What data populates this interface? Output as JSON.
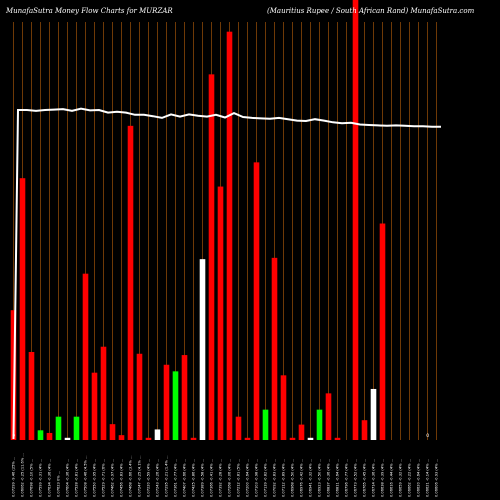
{
  "title_left": "MunafaSutra  Money  Flow  Charts for MURZAR",
  "title_right": "(Mauritius Rupee    / South African  Rand) MunafaSutra.com",
  "colors": {
    "background": "#000000",
    "grid": "#b8600a",
    "up": "#00ff00",
    "down": "#ff0000",
    "neutral": "#ffffff",
    "line": "#ffffff"
  },
  "chart_data": {
    "type": "bar",
    "ylim": [
      0,
      100
    ],
    "grid": "vertical",
    "zero_marks": [
      {
        "index": 0,
        "label": "0"
      },
      {
        "index": 46,
        "label": "0"
      }
    ],
    "categories": [
      "0.07299 -9.46 (25% ...",
      "0.06062 -0.25 (11.6% ...",
      "0.07698 -0.10 (5% ...",
      "0.07599 -0.31 (4% ...",
      "0.07634 -0.36 (4% ...",
      "0.07623 0% ...",
      "0.07604 -0.36 (4% ...",
      "0.07528 -0.81 (4% ...",
      "0.07508 -0.46 (4.5% ...",
      "0.07550 -0.95 (4% ...",
      "0.07529 -0.71 (6% ...",
      "0.07462 -0.97 (4% ...",
      "0.07456 -0.83 (4% ...",
      "0.07468 -0.66 (3.4% ...",
      "0.07247 -0.25 (4.1% ...",
      "0.07220 -0.59 (4% ...",
      "0.07243 -0.26 (4% ...",
      "0.07295 -0.21 (1.4% ...",
      "0.07361 -0.77 (4% ...",
      "0.07407 -0.66 (4% ...",
      "0.07425 -0.86 (4% ...",
      "0.07389 -0.58 (4% ...",
      "0.07366 -0.41 (4% ...",
      "0.07392 -0.28 (4% ...",
      "0.07268 -0.06 (4% ...",
      "0.07212 -0.81 (5% ...",
      "0.07200 -0.64 (4% ...",
      "0.07103 -0.98 (4% ...",
      "0.07139 -0.82 (4% ...",
      "0.07092 -0.83 (4% ...",
      "0.07112 -0.89 (4% ...",
      "0.06968 -0.50 (4% ...",
      "0.06976 -0.42 (4% ...",
      "0.06941 -0.32 (4% ...",
      "0.06923 -0.50 (4% ...",
      "0.06837 -0.36 (4% ...",
      "0.06811 -0.64 (4% ...",
      "0.06796 -0.77 (4% ...",
      "0.06773 -0.52 (4% ...",
      "0.06765 -0.45 (4% ...",
      "0.06714 -0.36 (4% ...",
      "0.06638 -0.39 (4% ...",
      "0.06616 -0.44 (4% ...",
      "0.06659 -0.32 (4% ...",
      "0.06662 -0.22 (4% ...",
      "0.06620 -0.64 (4% ...",
      "0.06621 -0.14 (4% ...",
      "0.06606 -0.93 (4% ..."
    ],
    "colors": [
      "down",
      "down",
      "down",
      "up",
      "down",
      "up",
      "neutral",
      "up",
      "down",
      "down",
      "down",
      "down",
      "down",
      "down",
      "down",
      "down",
      "neutral",
      "down",
      "up",
      "down",
      "down",
      "neutral",
      "down",
      "down",
      "down",
      "down",
      "down",
      "down",
      "up",
      "down",
      "down",
      "down",
      "down",
      "neutral",
      "up",
      "down",
      "down",
      "neutral",
      "down",
      "down",
      "neutral",
      "down",
      "down",
      "down",
      "down",
      "down",
      "up",
      "down"
    ],
    "values": [
      29.5,
      59.5,
      20.0,
      2.2,
      1.6,
      5.3,
      0.5,
      5.3,
      37.8,
      15.3,
      21.2,
      3.6,
      1.1,
      71.4,
      19.6,
      0.5,
      2.4,
      17.1,
      15.6,
      19.3,
      0.5,
      41.1,
      83.1,
      57.6,
      92.8,
      5.3,
      0.5,
      63.1,
      6.9,
      41.4,
      14.7,
      0.5,
      3.5,
      0.5,
      6.9,
      10.6,
      0.5,
      0,
      100,
      4.5,
      11.6,
      49.2,
      0,
      0,
      0,
      0,
      0,
      0
    ],
    "line": [
      75,
      75,
      74.8,
      75,
      75.1,
      75.2,
      74.8,
      75.3,
      74.9,
      75,
      74.4,
      74.6,
      74.4,
      73.9,
      73.9,
      73.6,
      73.2,
      74,
      73.5,
      74,
      73.7,
      73.5,
      73.9,
      73.3,
      74.3,
      73.4,
      73.2,
      73.1,
      73,
      73.2,
      72.9,
      72.6,
      72.5,
      72.9,
      72.6,
      72.2,
      72,
      72.1,
      71.7,
      71.6,
      71.5,
      71.4,
      71.5,
      71.4,
      71.3,
      71.3,
      71.2,
      71.2
    ]
  }
}
